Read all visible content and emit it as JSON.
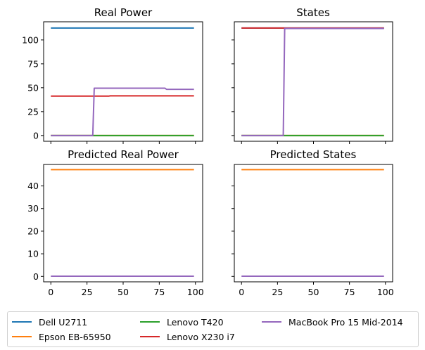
{
  "colors": {
    "Dell U2711": "#1f77b4",
    "Epson EB-65950": "#ff7f0e",
    "Lenovo T420": "#2ca02c",
    "Lenovo X230 i7": "#d62728",
    "MacBook Pro 15 Mid-2014": "#9467bd"
  },
  "legend": {
    "items": [
      "Dell U2711",
      "Epson EB-65950",
      "Lenovo T420",
      "Lenovo X230 i7",
      "MacBook Pro 15 Mid-2014"
    ]
  },
  "chart_data": [
    {
      "type": "line",
      "title": "Real Power",
      "xlim": [
        -5,
        105
      ],
      "ylim": [
        -6,
        119
      ],
      "yticks": [
        0,
        25,
        50,
        75,
        100
      ],
      "xticks": [
        0,
        25,
        50,
        75,
        100
      ],
      "show_xtick_labels": false,
      "show_ytick_labels": true,
      "series": [
        {
          "name": "Dell U2711",
          "x": [
            0,
            99
          ],
          "y": [
            112.5,
            112.5
          ]
        },
        {
          "name": "Epson EB-65950",
          "x": [
            0,
            99
          ],
          "y": [
            0,
            0
          ]
        },
        {
          "name": "Lenovo T420",
          "x": [
            0,
            99
          ],
          "y": [
            0,
            0
          ]
        },
        {
          "name": "Lenovo X230 i7",
          "x": [
            0,
            40,
            41,
            99
          ],
          "y": [
            41.2,
            41.2,
            41.5,
            41.5
          ]
        },
        {
          "name": "MacBook Pro 15 Mid-2014",
          "x": [
            0,
            29,
            30,
            79,
            80,
            99
          ],
          "y": [
            0,
            0,
            49.5,
            49.5,
            48.3,
            48.3
          ]
        }
      ]
    },
    {
      "type": "line",
      "title": "States",
      "xlim": [
        -5,
        105
      ],
      "ylim": [
        -6,
        119
      ],
      "yticks": [
        0,
        25,
        50,
        75,
        100
      ],
      "xticks": [
        0,
        25,
        50,
        75,
        100
      ],
      "show_xtick_labels": false,
      "show_ytick_labels": false,
      "series": [
        {
          "name": "Dell U2711",
          "x": [
            0,
            99
          ],
          "y": [
            112.5,
            112.5
          ]
        },
        {
          "name": "Epson EB-65950",
          "x": [
            0,
            99
          ],
          "y": [
            0,
            0
          ]
        },
        {
          "name": "Lenovo T420",
          "x": [
            0,
            99
          ],
          "y": [
            0,
            0
          ]
        },
        {
          "name": "Lenovo X230 i7",
          "x": [
            0,
            99
          ],
          "y": [
            112.5,
            112.5
          ]
        },
        {
          "name": "MacBook Pro 15 Mid-2014",
          "x": [
            0,
            29,
            30,
            99
          ],
          "y": [
            0,
            0,
            112.0,
            112.0
          ]
        }
      ]
    },
    {
      "type": "line",
      "title": "Predicted Real Power",
      "xlim": [
        -5,
        105
      ],
      "ylim": [
        -2.4,
        49.5
      ],
      "yticks": [
        0,
        10,
        20,
        30,
        40
      ],
      "xticks": [
        0,
        25,
        50,
        75,
        100
      ],
      "show_xtick_labels": true,
      "show_ytick_labels": true,
      "series": [
        {
          "name": "Epson EB-65950",
          "x": [
            0,
            99
          ],
          "y": [
            47.2,
            47.2
          ]
        },
        {
          "name": "MacBook Pro 15 Mid-2014",
          "x": [
            0,
            99
          ],
          "y": [
            0.1,
            0.1
          ]
        }
      ]
    },
    {
      "type": "line",
      "title": "Predicted States",
      "xlim": [
        -5,
        105
      ],
      "ylim": [
        -2.4,
        49.5
      ],
      "yticks": [
        0,
        10,
        20,
        30,
        40
      ],
      "xticks": [
        0,
        25,
        50,
        75,
        100
      ],
      "show_xtick_labels": true,
      "show_ytick_labels": false,
      "series": [
        {
          "name": "Epson EB-65950",
          "x": [
            0,
            99
          ],
          "y": [
            47.2,
            47.2
          ]
        },
        {
          "name": "MacBook Pro 15 Mid-2014",
          "x": [
            0,
            99
          ],
          "y": [
            0.1,
            0.1
          ]
        }
      ]
    }
  ]
}
